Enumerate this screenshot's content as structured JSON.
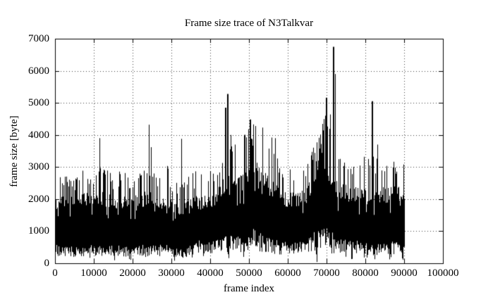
{
  "chart_data": {
    "type": "line",
    "title": "Frame size trace of N3Talkvar",
    "xlabel": "frame index",
    "ylabel": "frame size [byte]",
    "xlim": [
      0,
      100000
    ],
    "ylim": [
      0,
      7000
    ],
    "x_ticks": [
      0,
      10000,
      20000,
      30000,
      40000,
      50000,
      60000,
      70000,
      80000,
      90000,
      100000
    ],
    "y_ticks": [
      0,
      1000,
      2000,
      3000,
      4000,
      5000,
      6000,
      7000
    ],
    "grid": "dotted",
    "legend": "none",
    "line_color": "#000000",
    "background_color": "#ffffff",
    "data_x_start": 0,
    "data_x_end": 90000,
    "band_bucket_frames": 2000,
    "band_envelope": [
      [
        400,
        2250,
        2700
      ],
      [
        380,
        2250,
        2850
      ],
      [
        350,
        2150,
        2600
      ],
      [
        400,
        2250,
        2950
      ],
      [
        400,
        2300,
        2650
      ],
      [
        400,
        2300,
        3050
      ],
      [
        400,
        2250,
        2950
      ],
      [
        380,
        2150,
        2750
      ],
      [
        400,
        2200,
        3050
      ],
      [
        350,
        2050,
        2650
      ],
      [
        400,
        2150,
        2850
      ],
      [
        400,
        2250,
        3000
      ],
      [
        400,
        2250,
        3100
      ],
      [
        400,
        2150,
        2900
      ],
      [
        400,
        2050,
        3050
      ],
      [
        330,
        1950,
        2550
      ],
      [
        300,
        1900,
        2700
      ],
      [
        400,
        2000,
        2800
      ],
      [
        500,
        2150,
        3100
      ],
      [
        450,
        2150,
        3100
      ],
      [
        500,
        2250,
        3200
      ],
      [
        550,
        2600,
        3400
      ],
      [
        650,
        3200,
        4000
      ],
      [
        600,
        2800,
        3650
      ],
      [
        620,
        2950,
        4100
      ],
      [
        750,
        3300,
        4300
      ],
      [
        650,
        3100,
        4100
      ],
      [
        550,
        2700,
        3900
      ],
      [
        500,
        2500,
        3500
      ],
      [
        460,
        2250,
        2950
      ],
      [
        460,
        2250,
        3000
      ],
      [
        460,
        2250,
        3100
      ],
      [
        500,
        2350,
        3300
      ],
      [
        700,
        3300,
        4000
      ],
      [
        800,
        3900,
        4600
      ],
      [
        700,
        3000,
        4700
      ],
      [
        600,
        2550,
        3400
      ],
      [
        520,
        2450,
        3150
      ],
      [
        520,
        2450,
        3150
      ],
      [
        500,
        2350,
        3400
      ],
      [
        420,
        2300,
        3300
      ],
      [
        450,
        2350,
        3400
      ],
      [
        470,
        2400,
        3200
      ],
      [
        500,
        2450,
        3300
      ],
      [
        520,
        2500,
        3300
      ]
    ],
    "notable_spikes": [
      [
        11500,
        3900,
        1
      ],
      [
        24200,
        4320,
        1
      ],
      [
        24700,
        3620,
        1
      ],
      [
        32500,
        3880,
        1
      ],
      [
        44000,
        4850,
        2
      ],
      [
        44600,
        5280,
        2
      ],
      [
        45300,
        4000,
        1
      ],
      [
        46400,
        3700,
        1
      ],
      [
        48700,
        4000,
        1
      ],
      [
        50300,
        4480,
        2
      ],
      [
        51000,
        4330,
        1
      ],
      [
        51700,
        4280,
        1
      ],
      [
        53500,
        4230,
        1
      ],
      [
        55800,
        3920,
        1
      ],
      [
        56700,
        3900,
        1
      ],
      [
        69600,
        4600,
        1
      ],
      [
        70000,
        5160,
        2
      ],
      [
        71800,
        6750,
        2
      ],
      [
        72100,
        5900,
        1
      ],
      [
        81900,
        5050,
        2
      ],
      [
        83100,
        3700,
        1
      ],
      [
        89800,
        3080,
        1
      ]
    ],
    "near_zero_dips": [
      [
        19100,
        130
      ],
      [
        30700,
        80
      ],
      [
        48500,
        200
      ],
      [
        67400,
        40
      ],
      [
        70700,
        900
      ],
      [
        72700,
        600
      ],
      [
        80300,
        250
      ]
    ]
  }
}
